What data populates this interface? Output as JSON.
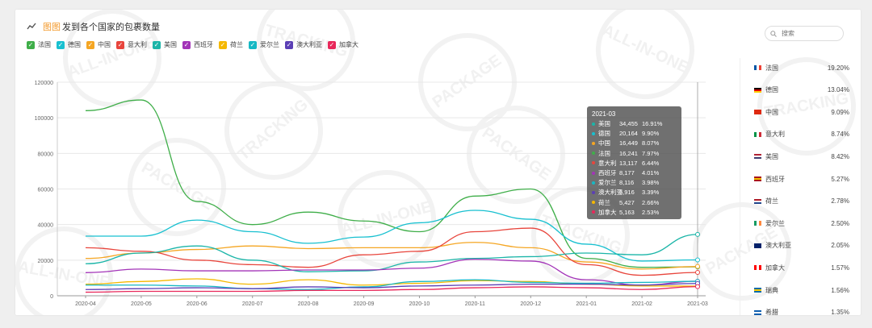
{
  "title": {
    "highlight": "图图",
    "text": "发到各个国家的包裹数量"
  },
  "search": {
    "placeholder": "搜索"
  },
  "legend": [
    {
      "name": "法国",
      "color": "#3fae49"
    },
    {
      "name": "德国",
      "color": "#18c0d0"
    },
    {
      "name": "中国",
      "color": "#f5a623"
    },
    {
      "name": "意大利",
      "color": "#e8453c"
    },
    {
      "name": "美国",
      "color": "#1bb5a8"
    },
    {
      "name": "西班牙",
      "color": "#a334b8"
    },
    {
      "name": "荷兰",
      "color": "#f5b800"
    },
    {
      "name": "爱尔兰",
      "color": "#16b8c4"
    },
    {
      "name": "澳大利亚",
      "color": "#5b3fb5"
    },
    {
      "name": "加拿大",
      "color": "#e8275a"
    }
  ],
  "watermark_text": [
    "ALL-IN-ONE",
    "TRACKING",
    "PACKAGE"
  ],
  "chart_data": {
    "type": "line",
    "x": [
      "2020-04",
      "2020-05",
      "2020-06",
      "2020-07",
      "2020-08",
      "2020-09",
      "2020-10",
      "2020-11",
      "2020-12",
      "2021-01",
      "2021-02",
      "2021-03"
    ],
    "ylim": [
      0,
      120000
    ],
    "yticks": [
      0,
      20000,
      40000,
      60000,
      80000,
      100000,
      120000
    ],
    "series": [
      {
        "name": "法国",
        "color": "#3fae49",
        "values": [
          104000,
          110000,
          53000,
          40000,
          47000,
          42000,
          36000,
          56000,
          60000,
          21000,
          16000,
          16241
        ]
      },
      {
        "name": "德国",
        "color": "#18c0d0",
        "values": [
          33500,
          33500,
          42500,
          36000,
          29500,
          33000,
          41000,
          48000,
          43000,
          29000,
          19500,
          20164
        ]
      },
      {
        "name": "中国",
        "color": "#f5a623",
        "values": [
          21000,
          24000,
          26000,
          28000,
          26500,
          27000,
          27000,
          30000,
          27000,
          19000,
          15000,
          16449
        ]
      },
      {
        "name": "意大利",
        "color": "#e8453c",
        "values": [
          27000,
          25000,
          20000,
          17500,
          16000,
          23000,
          25000,
          36000,
          38000,
          17500,
          11500,
          13117
        ]
      },
      {
        "name": "美国",
        "color": "#1bb5a8",
        "values": [
          18000,
          24000,
          28000,
          20000,
          13500,
          14000,
          19000,
          21000,
          22000,
          24000,
          23000,
          34455
        ]
      },
      {
        "name": "西班牙",
        "color": "#a334b8",
        "values": [
          13000,
          15000,
          14000,
          14000,
          14500,
          14500,
          15500,
          20500,
          19500,
          9000,
          6000,
          8177
        ]
      },
      {
        "name": "荷兰",
        "color": "#f5b800",
        "values": [
          6500,
          8000,
          9500,
          6500,
          9000,
          6000,
          7000,
          8500,
          8000,
          6500,
          5500,
          5427
        ]
      },
      {
        "name": "爱尔兰",
        "color": "#16b8c4",
        "values": [
          6000,
          6000,
          5500,
          4000,
          3500,
          5000,
          8000,
          9000,
          7500,
          7000,
          7500,
          8116
        ]
      },
      {
        "name": "澳大利亚",
        "color": "#5b3fb5",
        "values": [
          3500,
          4000,
          4500,
          4000,
          5000,
          4500,
          5500,
          6000,
          6500,
          6500,
          6000,
          6916
        ]
      },
      {
        "name": "加拿大",
        "color": "#e8275a",
        "values": [
          2000,
          2500,
          2500,
          2500,
          3000,
          3000,
          3500,
          4500,
          5000,
          4500,
          3500,
          5163
        ]
      }
    ]
  },
  "tooltip": {
    "date": "2021-03",
    "rows": [
      {
        "name": "美国",
        "value": "34,455",
        "pct": "16.91%",
        "color": "#1bb5a8"
      },
      {
        "name": "德国",
        "value": "20,164",
        "pct": "9.90%",
        "color": "#18c0d0"
      },
      {
        "name": "中国",
        "value": "16,449",
        "pct": "8.07%",
        "color": "#f5a623"
      },
      {
        "name": "法国",
        "value": "16,241",
        "pct": "7.97%",
        "color": "#3fae49"
      },
      {
        "name": "意大利",
        "value": "13,117",
        "pct": "6.44%",
        "color": "#e8453c"
      },
      {
        "name": "西班牙",
        "value": "8,177",
        "pct": "4.01%",
        "color": "#a334b8"
      },
      {
        "name": "爱尔兰",
        "value": "8,116",
        "pct": "3.98%",
        "color": "#16b8c4"
      },
      {
        "name": "澳大利亚",
        "value": "6,916",
        "pct": "3.39%",
        "color": "#5b3fb5"
      },
      {
        "name": "荷兰",
        "value": "5,427",
        "pct": "2.66%",
        "color": "#f5b800"
      },
      {
        "name": "加拿大",
        "value": "5,163",
        "pct": "2.53%",
        "color": "#e8275a"
      }
    ]
  },
  "sidebar": [
    {
      "name": "法国",
      "pct": "19.20%",
      "flag": [
        "#0055a4",
        "#ffffff",
        "#ef4135"
      ],
      "dir": "v"
    },
    {
      "name": "德国",
      "pct": "13.04%",
      "flag": [
        "#000000",
        "#dd0000",
        "#ffce00"
      ],
      "dir": "h"
    },
    {
      "name": "中国",
      "pct": "9.09%",
      "flag": [
        "#de2910"
      ],
      "dir": "h"
    },
    {
      "name": "意大利",
      "pct": "8.74%",
      "flag": [
        "#009246",
        "#ffffff",
        "#ce2b37"
      ],
      "dir": "v"
    },
    {
      "name": "美国",
      "pct": "8.42%",
      "flag": [
        "#b22234",
        "#ffffff",
        "#3c3b6e"
      ],
      "dir": "h"
    },
    {
      "name": "西班牙",
      "pct": "5.27%",
      "flag": [
        "#aa151b",
        "#f1bf00",
        "#aa151b"
      ],
      "dir": "h"
    },
    {
      "name": "荷兰",
      "pct": "2.78%",
      "flag": [
        "#ae1c28",
        "#ffffff",
        "#21468b"
      ],
      "dir": "h"
    },
    {
      "name": "爱尔兰",
      "pct": "2.50%",
      "flag": [
        "#169b62",
        "#ffffff",
        "#ff883e"
      ],
      "dir": "v"
    },
    {
      "name": "澳大利亚",
      "pct": "2.05%",
      "flag": [
        "#012169",
        "#012169"
      ],
      "dir": "h"
    },
    {
      "name": "加拿大",
      "pct": "1.57%",
      "flag": [
        "#ff0000",
        "#ffffff",
        "#ff0000"
      ],
      "dir": "v"
    },
    {
      "name": "瑞典",
      "pct": "1.56%",
      "flag": [
        "#006aa7",
        "#fecc00",
        "#006aa7"
      ],
      "dir": "h"
    },
    {
      "name": "希腊",
      "pct": "1.35%",
      "flag": [
        "#0d5eaf",
        "#ffffff",
        "#0d5eaf"
      ],
      "dir": "h"
    }
  ]
}
